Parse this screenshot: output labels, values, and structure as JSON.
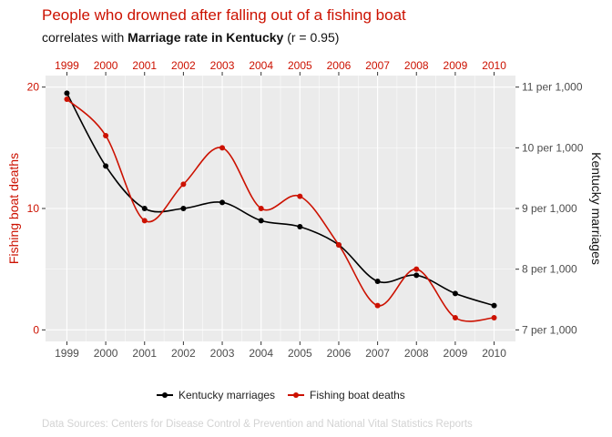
{
  "header": {
    "title": "People who drowned after falling out of a fishing boat",
    "subtitle_prefix": "correlates with ",
    "subtitle_bold": "Marriage rate in Kentucky",
    "subtitle_suffix": " (r = 0.95)"
  },
  "footer": {
    "source": "Data Sources: Centers for Disease Control & Prevention and National Vital Statistics Reports"
  },
  "colors": {
    "red": "#cc1100",
    "black": "#000000",
    "panel": "#ebebeb",
    "grid": "#ffffff",
    "axis_text": "#4d4d4d"
  },
  "chart_data": {
    "type": "line",
    "x": [
      1999,
      2000,
      2001,
      2002,
      2003,
      2004,
      2005,
      2006,
      2007,
      2008,
      2009,
      2010
    ],
    "series": [
      {
        "name": "Kentucky marriages",
        "axis": "right",
        "color": "#000000",
        "values": [
          10.9,
          9.7,
          9.0,
          9.0,
          9.1,
          8.8,
          8.7,
          8.4,
          7.8,
          7.9,
          7.6,
          7.4
        ]
      },
      {
        "name": "Fishing boat deaths",
        "axis": "left",
        "color": "#cc1100",
        "values": [
          19,
          16,
          9,
          12,
          15,
          10,
          11,
          7,
          2,
          5,
          1,
          1
        ]
      }
    ],
    "left_axis": {
      "label": "Fishing boat deaths",
      "ticks": [
        0,
        10,
        20
      ],
      "tick_labels": [
        "0",
        "10",
        "20"
      ],
      "range": [
        -0.95,
        20.95
      ]
    },
    "right_axis": {
      "label": "Kentucky marriages",
      "ticks": [
        7,
        8,
        9,
        10,
        11
      ],
      "tick_labels": [
        "7 per 1,000",
        "8 per 1,000",
        "9 per 1,000",
        "10 per 1,000",
        "11 per 1,000"
      ]
    },
    "x_tick_labels": [
      "1999",
      "2000",
      "2001",
      "2002",
      "2003",
      "2004",
      "2005",
      "2006",
      "2007",
      "2008",
      "2009",
      "2010"
    ],
    "legend_position": "bottom",
    "grid": true
  }
}
